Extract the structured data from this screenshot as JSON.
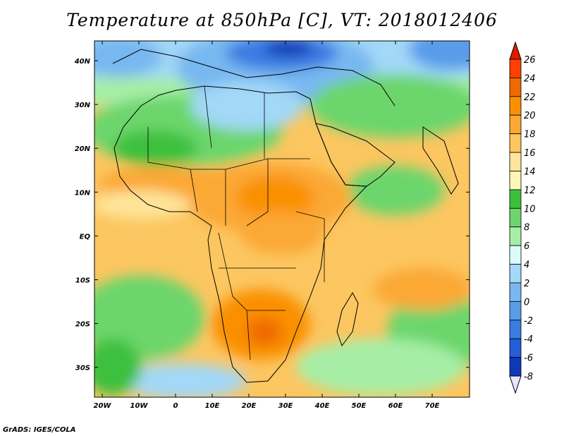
{
  "title": "Temperature at 850hPa [C], VT: 2018012406",
  "credit": "GrADS: IGES/COLA",
  "map": {
    "lat_labels": [
      "40N",
      "30N",
      "20N",
      "10N",
      "EQ",
      "10S",
      "20S",
      "30S"
    ],
    "lon_labels": [
      "20W",
      "10W",
      "0",
      "10E",
      "20E",
      "30E",
      "40E",
      "50E",
      "60E",
      "70E"
    ]
  },
  "colorbar": {
    "levels": [
      "26",
      "24",
      "22",
      "20",
      "18",
      "16",
      "14",
      "12",
      "10",
      "8",
      "6",
      "4",
      "2",
      "0",
      "-2",
      "-4",
      "-6",
      "-8"
    ],
    "colors": {
      "top": "#e31a00",
      "bottom": "#e8e4ff",
      "bins": [
        "#ff4000",
        "#f06a00",
        "#fa9000",
        "#fba834",
        "#fcc660",
        "#fee59a",
        "#fff7b8",
        "#3cc03c",
        "#6cd66c",
        "#a6eea6",
        "#dcfcfc",
        "#a2d8f8",
        "#78b8f0",
        "#5a9cea",
        "#3a7ce2",
        "#245ed8",
        "#0e3ab8",
        "#001066"
      ]
    }
  }
}
